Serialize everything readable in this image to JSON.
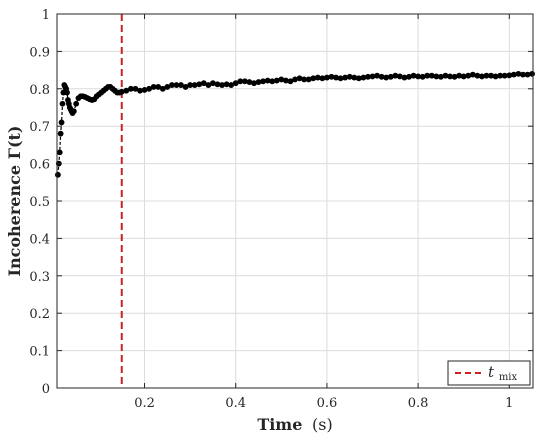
{
  "chart_data": {
    "type": "scatter",
    "xlabel_main": "Time",
    "xlabel_unit": "(s)",
    "ylabel": "Incoherence Γ(t)",
    "xlim": [
      0.008,
      1.052
    ],
    "ylim": [
      0,
      1
    ],
    "xticks": [
      {
        "value": 0.2,
        "label": "0.2"
      },
      {
        "value": 0.4,
        "label": "0.4"
      },
      {
        "value": 0.6,
        "label": "0.6"
      },
      {
        "value": 0.8,
        "label": "0.8"
      },
      {
        "value": 1.0,
        "label": "1"
      }
    ],
    "yticks": [
      {
        "value": 0,
        "label": "0"
      },
      {
        "value": 0.1,
        "label": "0.1"
      },
      {
        "value": 0.2,
        "label": "0.2"
      },
      {
        "value": 0.3,
        "label": "0.3"
      },
      {
        "value": 0.4,
        "label": "0.4"
      },
      {
        "value": 0.5,
        "label": "0.5"
      },
      {
        "value": 0.6,
        "label": "0.6"
      },
      {
        "value": 0.7,
        "label": "0.7"
      },
      {
        "value": 0.8,
        "label": "0.8"
      },
      {
        "value": 0.9,
        "label": "0.9"
      },
      {
        "value": 1.0,
        "label": "1"
      }
    ],
    "grid": true,
    "series": [
      {
        "color": "#000000",
        "marker": "dot",
        "x": [
          0.01,
          0.012,
          0.014,
          0.016,
          0.018,
          0.02,
          0.022,
          0.024,
          0.026,
          0.028,
          0.03,
          0.032,
          0.034,
          0.036,
          0.038,
          0.04,
          0.042,
          0.045,
          0.05,
          0.055,
          0.06,
          0.065,
          0.07,
          0.075,
          0.08,
          0.085,
          0.09,
          0.095,
          0.1,
          0.105,
          0.11,
          0.115,
          0.12,
          0.125,
          0.13,
          0.135,
          0.14,
          0.145,
          0.15,
          0.16,
          0.17,
          0.18,
          0.19,
          0.2,
          0.21,
          0.22,
          0.23,
          0.24,
          0.25,
          0.26,
          0.27,
          0.28,
          0.29,
          0.3,
          0.31,
          0.32,
          0.33,
          0.34,
          0.35,
          0.36,
          0.37,
          0.38,
          0.39,
          0.4,
          0.41,
          0.42,
          0.43,
          0.44,
          0.45,
          0.46,
          0.47,
          0.48,
          0.49,
          0.5,
          0.51,
          0.52,
          0.53,
          0.54,
          0.55,
          0.56,
          0.57,
          0.58,
          0.59,
          0.6,
          0.61,
          0.62,
          0.63,
          0.64,
          0.65,
          0.66,
          0.67,
          0.68,
          0.69,
          0.7,
          0.71,
          0.72,
          0.73,
          0.74,
          0.75,
          0.76,
          0.77,
          0.78,
          0.79,
          0.8,
          0.81,
          0.82,
          0.83,
          0.84,
          0.85,
          0.86,
          0.87,
          0.88,
          0.89,
          0.9,
          0.91,
          0.92,
          0.93,
          0.94,
          0.95,
          0.96,
          0.97,
          0.98,
          0.99,
          1.0,
          1.01,
          1.02,
          1.03,
          1.04,
          1.05
        ],
        "y": [
          0.57,
          0.6,
          0.63,
          0.68,
          0.71,
          0.76,
          0.79,
          0.81,
          0.805,
          0.8,
          0.79,
          0.77,
          0.76,
          0.75,
          0.745,
          0.74,
          0.735,
          0.74,
          0.76,
          0.775,
          0.78,
          0.78,
          0.778,
          0.775,
          0.772,
          0.77,
          0.772,
          0.78,
          0.785,
          0.79,
          0.795,
          0.8,
          0.805,
          0.805,
          0.8,
          0.795,
          0.79,
          0.79,
          0.792,
          0.795,
          0.8,
          0.8,
          0.795,
          0.797,
          0.8,
          0.805,
          0.805,
          0.8,
          0.805,
          0.81,
          0.81,
          0.81,
          0.805,
          0.81,
          0.81,
          0.812,
          0.815,
          0.81,
          0.815,
          0.812,
          0.81,
          0.812,
          0.81,
          0.815,
          0.82,
          0.82,
          0.818,
          0.815,
          0.818,
          0.82,
          0.822,
          0.82,
          0.822,
          0.825,
          0.822,
          0.82,
          0.825,
          0.828,
          0.825,
          0.825,
          0.828,
          0.83,
          0.828,
          0.83,
          0.832,
          0.83,
          0.828,
          0.83,
          0.832,
          0.83,
          0.828,
          0.83,
          0.832,
          0.833,
          0.835,
          0.832,
          0.83,
          0.832,
          0.835,
          0.833,
          0.83,
          0.832,
          0.835,
          0.833,
          0.832,
          0.835,
          0.835,
          0.833,
          0.832,
          0.835,
          0.833,
          0.832,
          0.835,
          0.833,
          0.835,
          0.838,
          0.835,
          0.833,
          0.835,
          0.835,
          0.833,
          0.835,
          0.835,
          0.836,
          0.838,
          0.84,
          0.838,
          0.838,
          0.84
        ]
      }
    ],
    "vline": {
      "x": 0.15,
      "color": "#cc2222",
      "style": "dashed"
    },
    "legend": {
      "placement": "bottom-right",
      "label_main": "t",
      "label_sub": "mix"
    }
  }
}
